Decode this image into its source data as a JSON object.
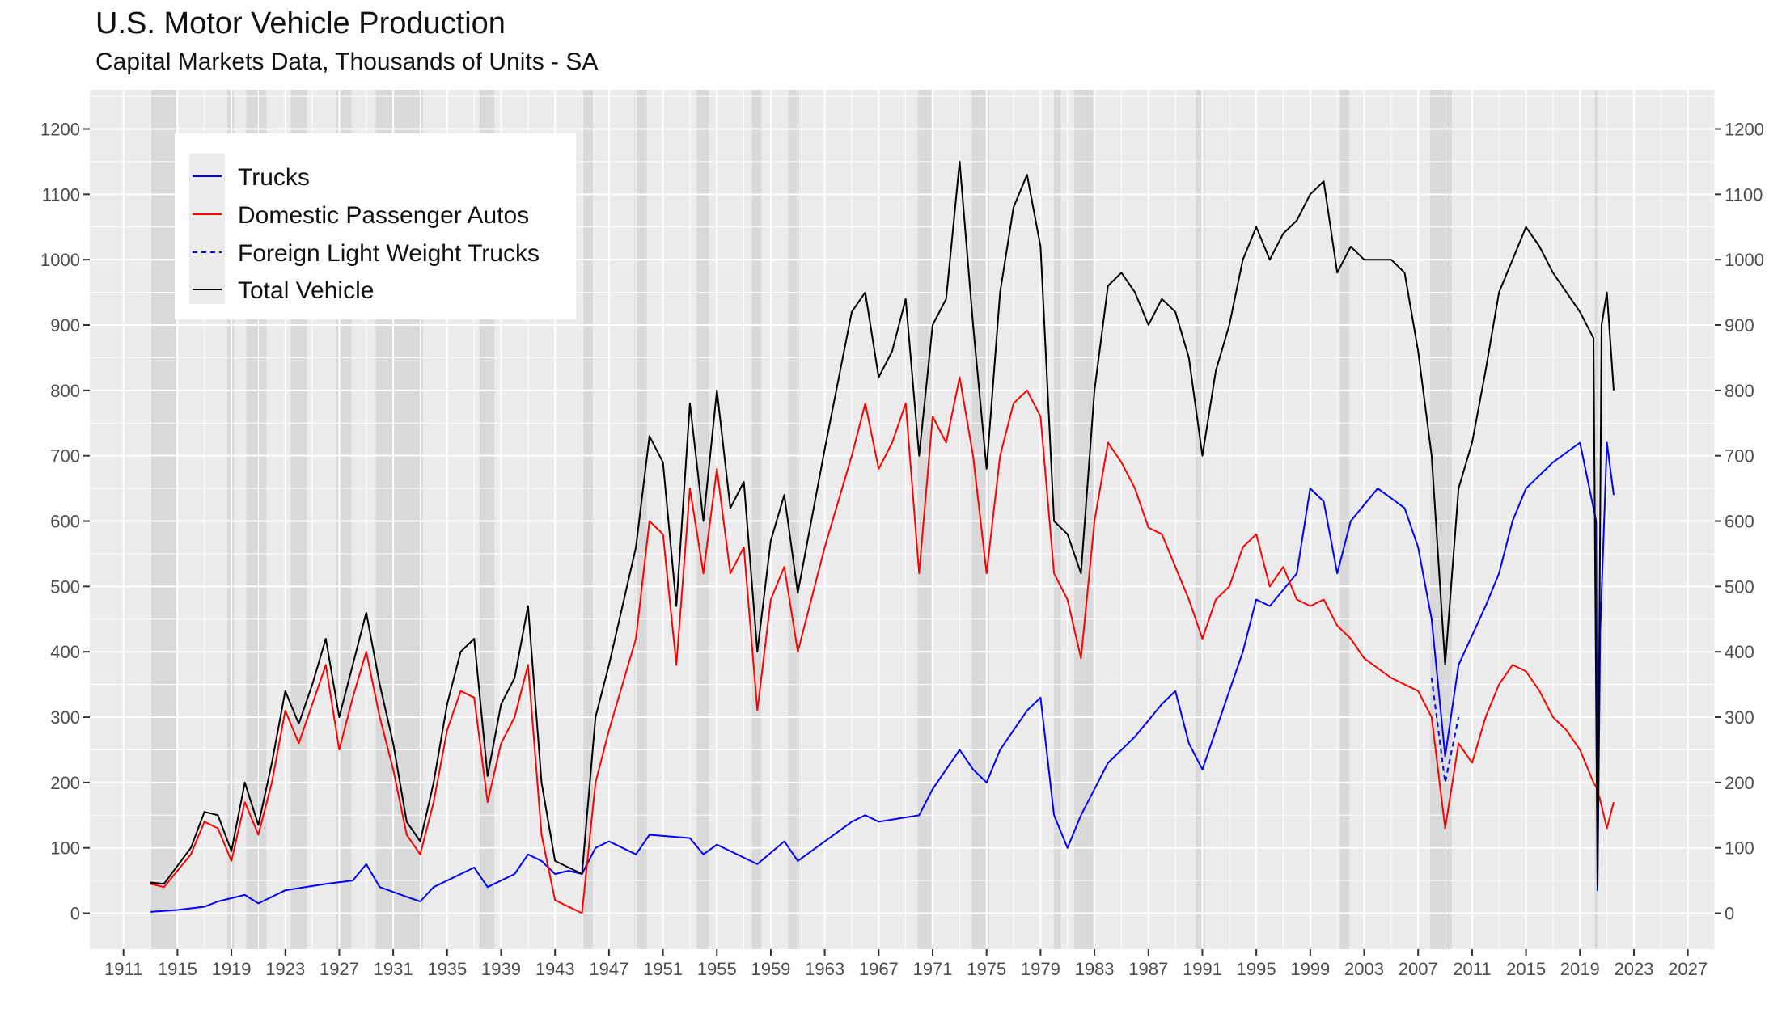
{
  "header": {
    "title": "U.S. Motor Vehicle Production",
    "subtitle": "Capital Markets Data, Thousands of Units - SA"
  },
  "colors": {
    "panel": "#ebebeb",
    "grid": "#ffffff",
    "recession": "#d9d9d9",
    "trucks": "#0000ff",
    "autos": "#ff0000",
    "foreign": "#0000ff",
    "total": "#000000"
  },
  "chart_data": {
    "type": "line",
    "title": "U.S. Motor Vehicle Production",
    "subtitle": "Capital Markets Data, Thousands of Units - SA",
    "xlabel": "",
    "ylabel": "",
    "xlim": [
      1908.5,
      2029
    ],
    "ylim": [
      -55,
      1260
    ],
    "x_ticks": [
      1911,
      1915,
      1919,
      1923,
      1927,
      1931,
      1935,
      1939,
      1943,
      1947,
      1951,
      1955,
      1959,
      1963,
      1967,
      1971,
      1975,
      1979,
      1983,
      1987,
      1991,
      1995,
      1999,
      2003,
      2007,
      2011,
      2015,
      2019,
      2023,
      2027
    ],
    "y_ticks": [
      0,
      100,
      200,
      300,
      400,
      500,
      600,
      700,
      800,
      900,
      1000,
      1100,
      1200
    ],
    "y_axis_right_duplicate": true,
    "grid": true,
    "legend_position": "top-left",
    "recessions": [
      [
        1913.0,
        1914.9
      ],
      [
        1918.7,
        1919.2
      ],
      [
        1920.1,
        1921.6
      ],
      [
        1923.4,
        1924.6
      ],
      [
        1926.8,
        1927.9
      ],
      [
        1929.7,
        1933.2
      ],
      [
        1937.4,
        1938.5
      ],
      [
        1945.1,
        1945.8
      ],
      [
        1948.9,
        1949.8
      ],
      [
        1953.5,
        1954.4
      ],
      [
        1957.6,
        1958.3
      ],
      [
        1960.3,
        1961.1
      ],
      [
        1969.9,
        1970.9
      ],
      [
        1973.9,
        1975.2
      ],
      [
        1980.0,
        1980.5
      ],
      [
        1981.5,
        1982.9
      ],
      [
        1990.5,
        1991.2
      ],
      [
        2001.2,
        2001.9
      ],
      [
        2007.9,
        2009.5
      ],
      [
        2020.1,
        2020.3
      ]
    ],
    "series": [
      {
        "name": "Trucks",
        "style": "solid",
        "x": [
          1913,
          1915,
          1917,
          1918,
          1920,
          1921,
          1923,
          1926,
          1928,
          1929,
          1930,
          1932,
          1933,
          1934,
          1937,
          1938,
          1940,
          1941,
          1942,
          1943,
          1944,
          1945,
          1946,
          1947,
          1949,
          1950,
          1953,
          1954,
          1955,
          1958,
          1960,
          1961,
          1965,
          1966,
          1967,
          1970,
          1971,
          1973,
          1974,
          1975,
          1976,
          1978,
          1979,
          1980,
          1981,
          1982,
          1984,
          1986,
          1988,
          1989,
          1990,
          1991,
          1993,
          1994,
          1995,
          1996,
          1998,
          1999,
          2000,
          2001,
          2002,
          2004,
          2006,
          2007,
          2008,
          2009,
          2010,
          2012,
          2013,
          2014,
          2015,
          2017,
          2019,
          2020.2,
          2020.3,
          2020.5,
          2021.0,
          2021.5
        ],
        "values": [
          2,
          5,
          10,
          18,
          28,
          15,
          35,
          45,
          50,
          75,
          40,
          25,
          18,
          40,
          70,
          40,
          60,
          90,
          80,
          60,
          65,
          60,
          100,
          110,
          90,
          120,
          115,
          90,
          105,
          75,
          110,
          80,
          140,
          150,
          140,
          150,
          190,
          250,
          220,
          200,
          250,
          310,
          330,
          150,
          100,
          150,
          230,
          270,
          320,
          340,
          260,
          220,
          340,
          400,
          480,
          470,
          520,
          650,
          630,
          520,
          600,
          650,
          620,
          560,
          450,
          240,
          380,
          470,
          520,
          600,
          650,
          690,
          720,
          600,
          35,
          430,
          720,
          640
        ]
      },
      {
        "name": "Domestic Passenger Autos",
        "style": "solid",
        "x": [
          1913,
          1914,
          1916,
          1917,
          1918,
          1919,
          1920,
          1921,
          1922,
          1923,
          1924,
          1925,
          1926,
          1927,
          1928,
          1929,
          1930,
          1931,
          1932,
          1933,
          1934,
          1935,
          1936,
          1937,
          1938,
          1939,
          1940,
          1941,
          1942,
          1943,
          1945,
          1946,
          1947,
          1949,
          1950,
          1951,
          1952,
          1953,
          1954,
          1955,
          1956,
          1957,
          1958,
          1959,
          1960,
          1961,
          1963,
          1965,
          1966,
          1967,
          1968,
          1969,
          1970,
          1971,
          1972,
          1973,
          1974,
          1975,
          1976,
          1977,
          1978,
          1979,
          1980,
          1981,
          1982,
          1983,
          1984,
          1985,
          1986,
          1987,
          1988,
          1989,
          1990,
          1991,
          1992,
          1993,
          1994,
          1995,
          1996,
          1997,
          1998,
          1999,
          2000,
          2001,
          2002,
          2003,
          2005,
          2007,
          2008,
          2009,
          2010,
          2011,
          2012,
          2013,
          2014,
          2015,
          2016,
          2017,
          2018,
          2019,
          2020,
          2020.3,
          2021,
          2021.5
        ],
        "values": [
          45,
          40,
          90,
          140,
          130,
          80,
          170,
          120,
          200,
          310,
          260,
          320,
          380,
          250,
          330,
          400,
          300,
          220,
          120,
          90,
          170,
          280,
          340,
          330,
          170,
          260,
          300,
          380,
          120,
          20,
          0,
          200,
          280,
          420,
          600,
          580,
          380,
          650,
          520,
          680,
          520,
          560,
          310,
          480,
          530,
          400,
          560,
          700,
          780,
          680,
          720,
          780,
          520,
          760,
          720,
          820,
          700,
          520,
          700,
          780,
          800,
          760,
          520,
          480,
          390,
          600,
          720,
          690,
          650,
          590,
          580,
          530,
          480,
          420,
          480,
          500,
          560,
          580,
          500,
          530,
          480,
          470,
          480,
          440,
          420,
          390,
          360,
          340,
          300,
          130,
          260,
          230,
          300,
          350,
          380,
          370,
          340,
          300,
          280,
          250,
          200,
          190,
          130,
          170
        ]
      },
      {
        "name": "Foreign Light Weight Trucks",
        "style": "dashed",
        "x": [
          2008,
          2009,
          2010
        ],
        "values": [
          360,
          200,
          300
        ]
      },
      {
        "name": "Total Vehicle",
        "style": "solid",
        "x": [
          1913,
          1914,
          1916,
          1917,
          1918,
          1919,
          1920,
          1921,
          1922,
          1923,
          1924,
          1925,
          1926,
          1927,
          1928,
          1929,
          1930,
          1931,
          1932,
          1933,
          1934,
          1935,
          1936,
          1937,
          1938,
          1939,
          1940,
          1941,
          1942,
          1943,
          1945,
          1946,
          1947,
          1949,
          1950,
          1951,
          1952,
          1953,
          1954,
          1955,
          1956,
          1957,
          1958,
          1959,
          1960,
          1961,
          1963,
          1965,
          1966,
          1967,
          1968,
          1969,
          1970,
          1971,
          1972,
          1973,
          1974,
          1975,
          1976,
          1977,
          1978,
          1979,
          1980,
          1981,
          1982,
          1983,
          1984,
          1985,
          1986,
          1987,
          1988,
          1989,
          1990,
          1991,
          1992,
          1993,
          1994,
          1995,
          1996,
          1997,
          1998,
          1999,
          2000,
          2001,
          2002,
          2003,
          2005,
          2006,
          2007,
          2008,
          2009,
          2010,
          2011,
          2012,
          2013,
          2014,
          2015,
          2016,
          2017,
          2018,
          2019,
          2020,
          2020.3,
          2020.6,
          2021,
          2021.5
        ],
        "values": [
          47,
          45,
          100,
          155,
          150,
          95,
          200,
          135,
          230,
          340,
          290,
          350,
          420,
          300,
          380,
          460,
          350,
          260,
          140,
          110,
          200,
          320,
          400,
          420,
          210,
          320,
          360,
          470,
          200,
          80,
          60,
          300,
          380,
          560,
          730,
          690,
          470,
          780,
          600,
          800,
          620,
          660,
          400,
          570,
          640,
          490,
          710,
          920,
          950,
          820,
          860,
          940,
          700,
          900,
          940,
          1150,
          900,
          680,
          950,
          1080,
          1130,
          1020,
          600,
          580,
          520,
          800,
          960,
          980,
          950,
          900,
          940,
          920,
          850,
          700,
          830,
          900,
          1000,
          1050,
          1000,
          1040,
          1060,
          1100,
          1120,
          980,
          1020,
          1000,
          1000,
          980,
          860,
          700,
          380,
          650,
          720,
          830,
          950,
          1000,
          1050,
          1020,
          980,
          950,
          920,
          880,
          40,
          900,
          950,
          800
        ]
      }
    ]
  }
}
